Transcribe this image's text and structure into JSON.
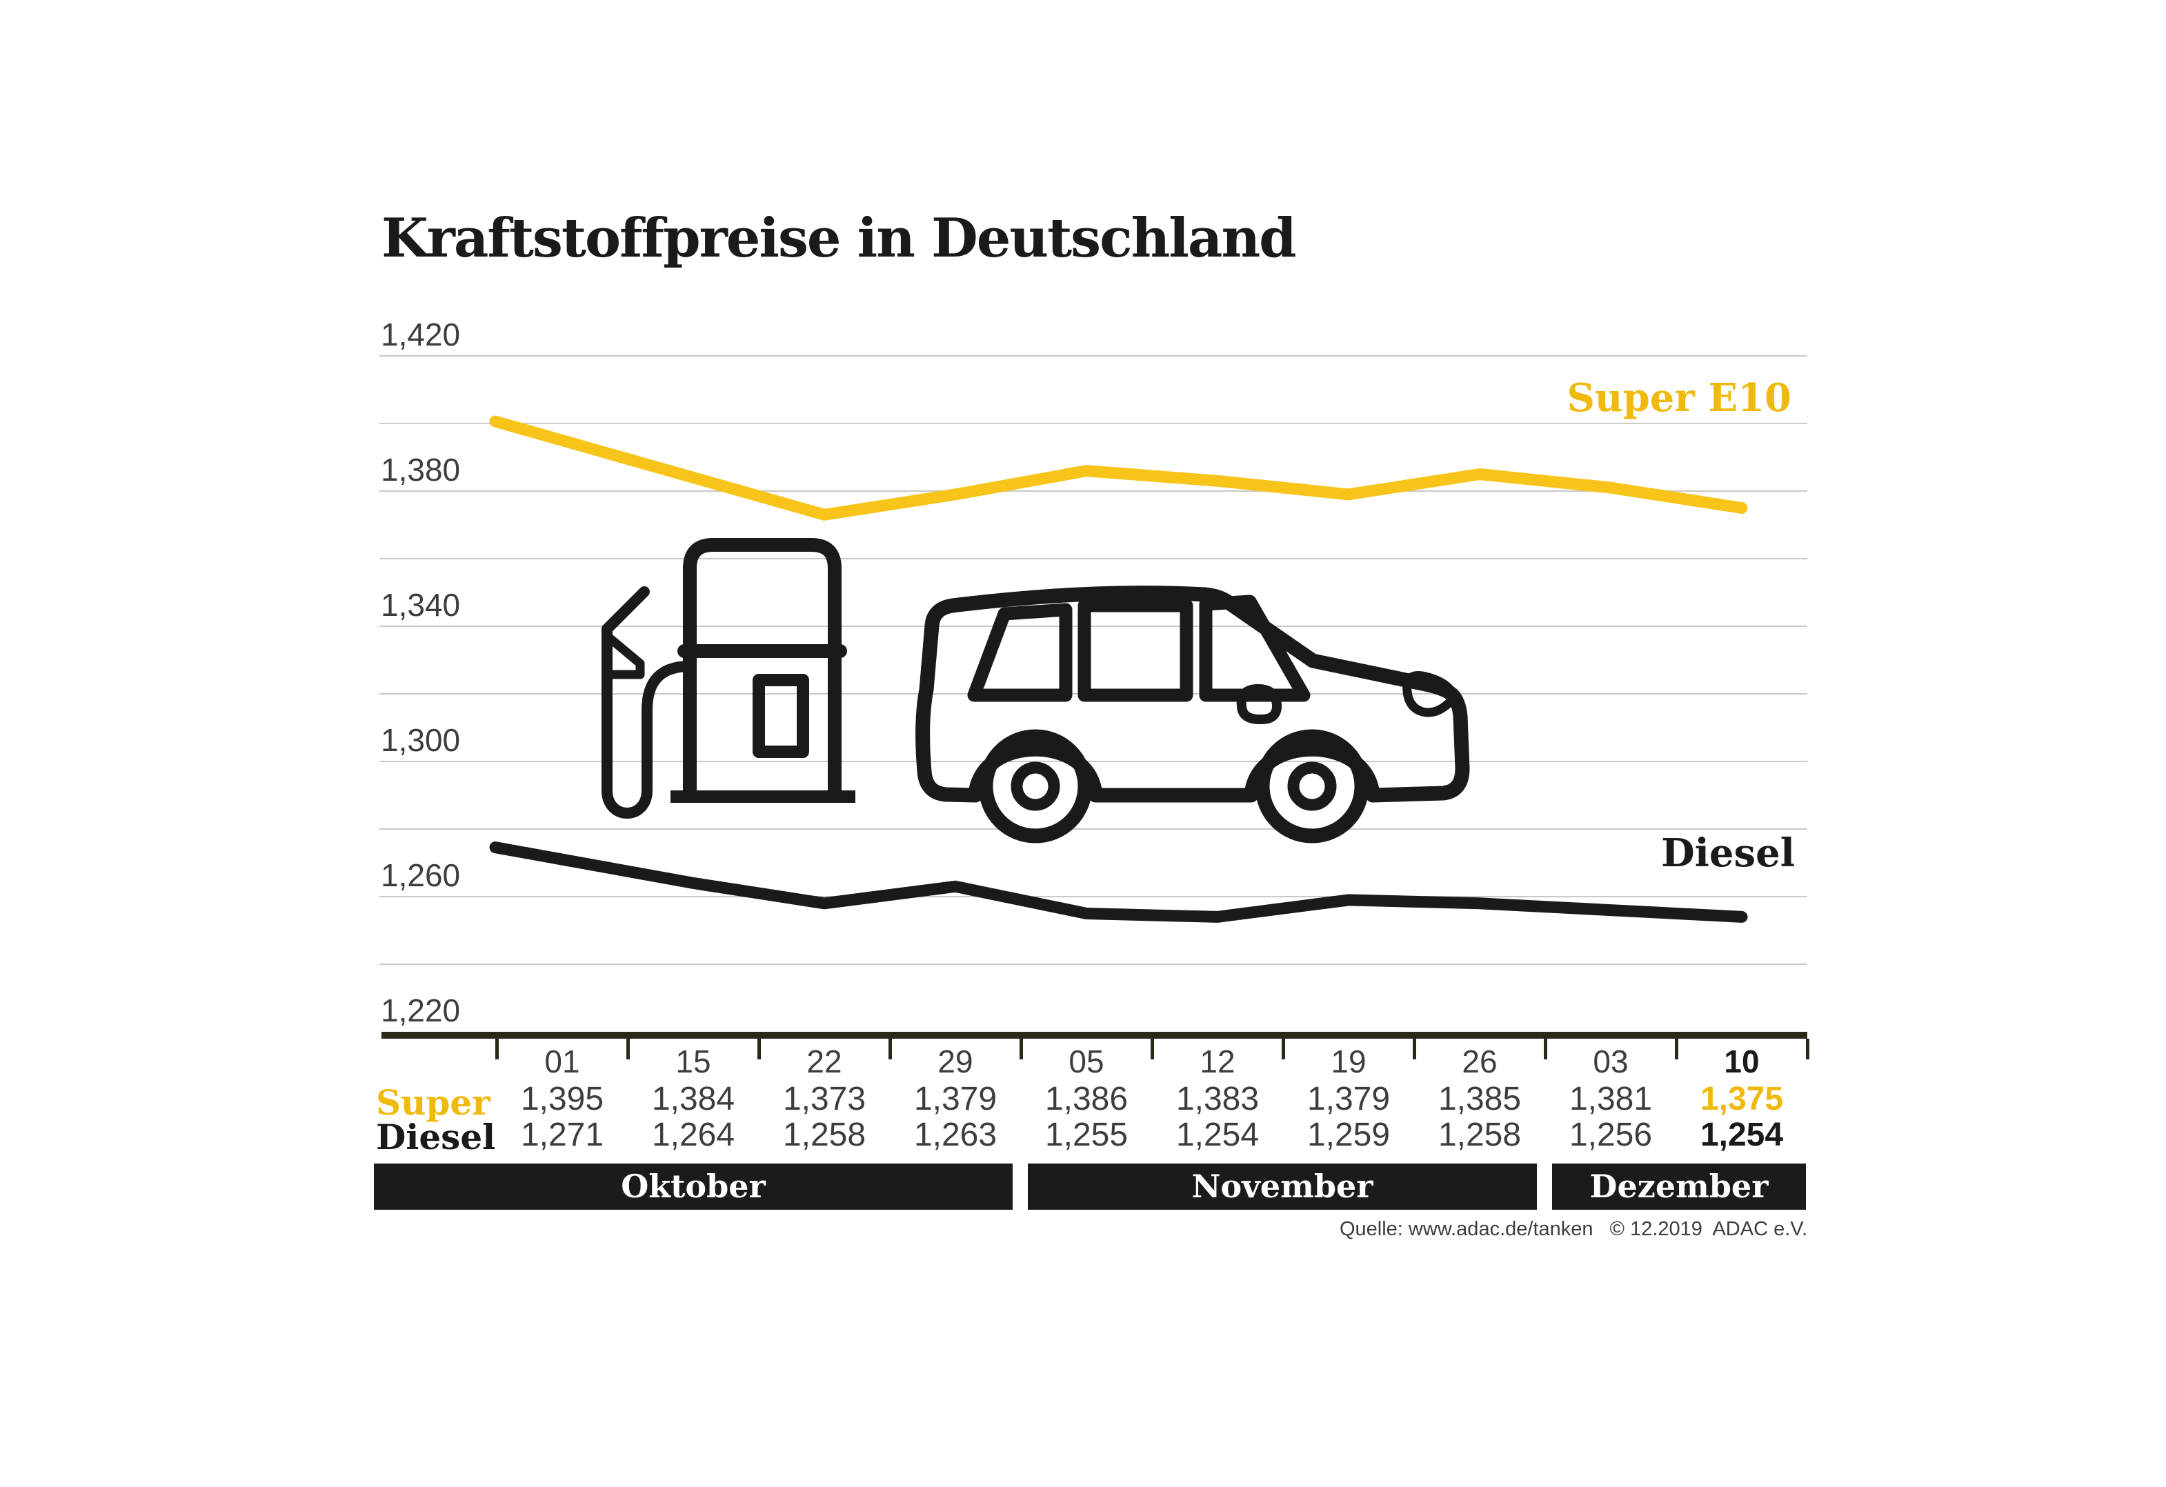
{
  "title": "Kraftstoffpreise in Deutschland",
  "chart_data": {
    "type": "line",
    "title": "Kraftstoffpreise in Deutschland",
    "x_categories": [
      "01",
      "15",
      "22",
      "29",
      "05",
      "12",
      "19",
      "26",
      "03",
      "10"
    ],
    "series": [
      {
        "name": "Super E10",
        "color": "#F8C41A",
        "values": [
          1.395,
          1.384,
          1.373,
          1.379,
          1.386,
          1.383,
          1.379,
          1.385,
          1.381,
          1.375
        ]
      },
      {
        "name": "Diesel",
        "color": "#1B1A18",
        "values": [
          1.271,
          1.264,
          1.258,
          1.263,
          1.255,
          1.254,
          1.259,
          1.258,
          1.256,
          1.254
        ]
      }
    ],
    "ylim": [
      1.22,
      1.42
    ],
    "grid_step": 0.02,
    "grid": true,
    "y_tick_labels": [
      "1,420",
      "1,380",
      "1,340",
      "1,300",
      "1,260",
      "1,220"
    ],
    "legend_position": "inline-right",
    "month_bands": [
      {
        "label": "Oktober",
        "columns": 4
      },
      {
        "label": "November",
        "columns": 4
      },
      {
        "label": "Dezember",
        "columns": 2
      }
    ]
  },
  "axis": {
    "y_labels": [
      "1,420",
      "1,380",
      "1,340",
      "1,300",
      "1,260",
      "1,220"
    ]
  },
  "table": {
    "columns": [
      "01",
      "15",
      "22",
      "29",
      "05",
      "12",
      "19",
      "26",
      "03",
      "10"
    ],
    "rows": [
      {
        "label": "Super",
        "values": [
          "1,395",
          "1,384",
          "1,373",
          "1,379",
          "1,386",
          "1,383",
          "1,379",
          "1,385",
          "1,381",
          "1,375"
        ]
      },
      {
        "label": "Diesel",
        "values": [
          "1,271",
          "1,264",
          "1,258",
          "1,263",
          "1,255",
          "1,254",
          "1,259",
          "1,258",
          "1,256",
          "1,254"
        ]
      }
    ]
  },
  "series_labels": {
    "super": "Super E10",
    "diesel": "Diesel"
  },
  "source": "Quelle: www.adac.de/tanken   © 12.2019  ADAC e.V.",
  "colors": {
    "super_yellow": "#F8C41A",
    "diesel_black": "#1B1A18",
    "grid_gray": "#C9C8C4",
    "axis_dark": "#2B2817",
    "text_gray": "#3E3D3B",
    "band_black": "#1C1B19"
  }
}
